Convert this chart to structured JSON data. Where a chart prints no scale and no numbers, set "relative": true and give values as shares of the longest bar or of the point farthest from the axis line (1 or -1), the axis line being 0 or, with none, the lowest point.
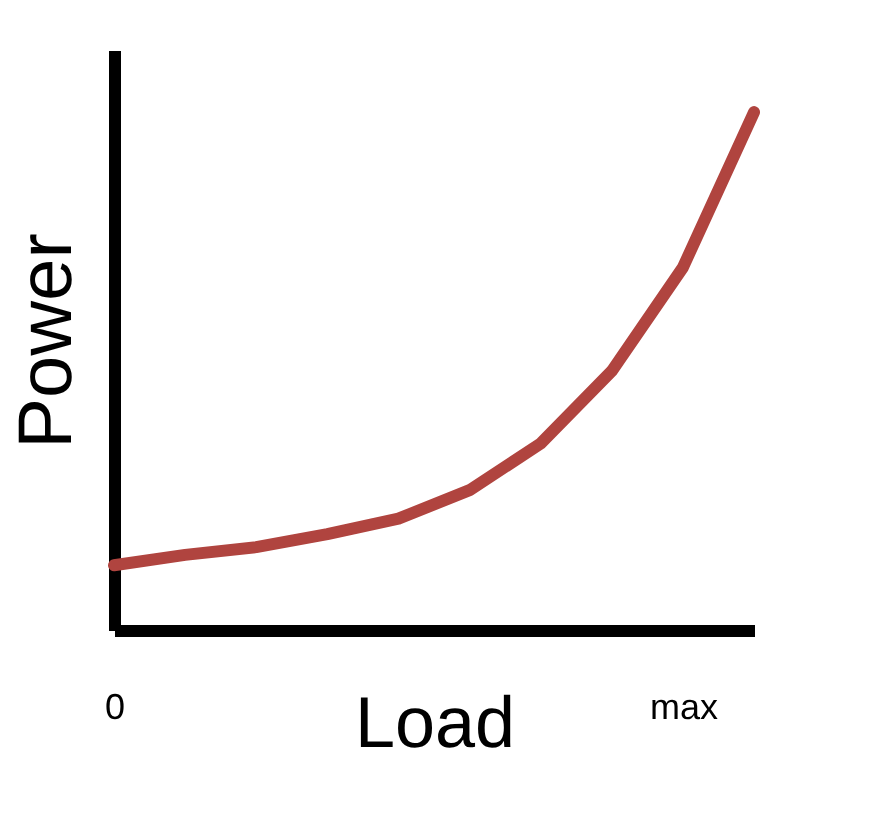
{
  "chart_data": {
    "type": "line",
    "xlabel": "Load",
    "ylabel": "Power",
    "relative": true,
    "categories": [
      "0",
      null,
      null,
      null,
      null,
      null,
      null,
      null,
      "max",
      null
    ],
    "series": [
      {
        "color": "#b0443f",
        "values": [
          0.125,
          0.145,
          0.16,
          0.185,
          0.215,
          0.27,
          0.36,
          0.5,
          0.7,
          1.0
        ]
      }
    ],
    "grid": false,
    "marker": "none",
    "line_style": "solid"
  }
}
